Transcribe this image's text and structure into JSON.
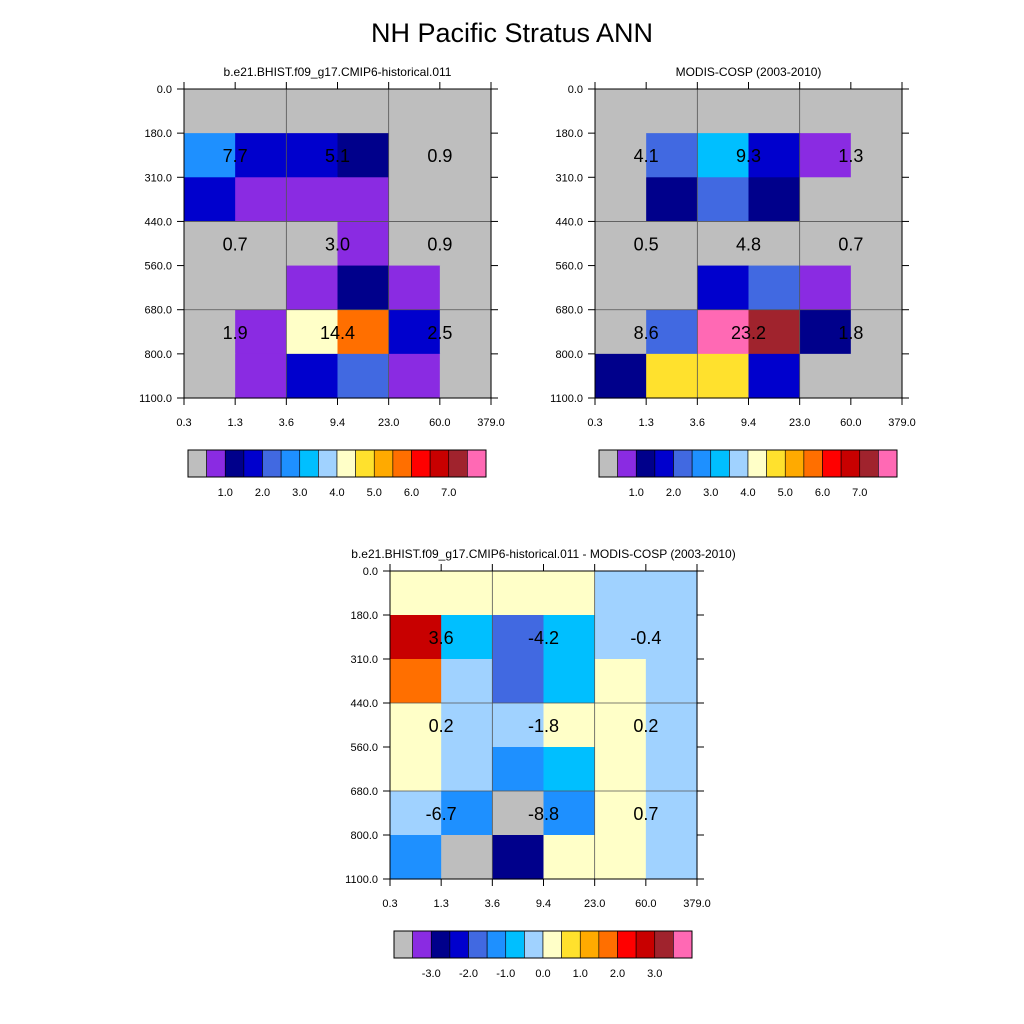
{
  "title": "NH Pacific Stratus ANN",
  "chart_data": [
    {
      "type": "heatmap",
      "title": "b.e21.BHIST.f09_g17.CMIP6-historical.011",
      "x_ticks": [
        "0.3",
        "1.3",
        "3.6",
        "9.4",
        "23.0",
        "60.0",
        "379.0"
      ],
      "y_ticks": [
        "0.0",
        "180.0",
        "310.0",
        "440.0",
        "560.0",
        "680.0",
        "800.0",
        "1100.0"
      ],
      "grid": true,
      "cell_colors": [
        [
          "#BEBEBE",
          "#BEBEBE",
          "#BEBEBE",
          "#BEBEBE",
          "#BEBEBE",
          "#BEBEBE"
        ],
        [
          "#1E90FF",
          "#0000CD",
          "#0000CD",
          "#00008B",
          "#BEBEBE",
          "#BEBEBE"
        ],
        [
          "#0000CD",
          "#8A2BE2",
          "#8A2BE2",
          "#8A2BE2",
          "#BEBEBE",
          "#BEBEBE"
        ],
        [
          "#BEBEBE",
          "#BEBEBE",
          "#BEBEBE",
          "#8A2BE2",
          "#BEBEBE",
          "#BEBEBE"
        ],
        [
          "#BEBEBE",
          "#BEBEBE",
          "#8A2BE2",
          "#00008B",
          "#8A2BE2",
          "#BEBEBE"
        ],
        [
          "#BEBEBE",
          "#8A2BE2",
          "#FFFFC8",
          "#FF6F00",
          "#0000CD",
          "#BEBEBE"
        ],
        [
          "#BEBEBE",
          "#8A2BE2",
          "#0000CD",
          "#4169E1",
          "#8A2BE2",
          "#BEBEBE"
        ]
      ],
      "block_labels": [
        [
          "7.7",
          "5.1",
          "0.9"
        ],
        [
          "0.7",
          "3.0",
          "0.9"
        ],
        [
          "1.9",
          "14.4",
          "2.5"
        ]
      ],
      "colorbar": {
        "colors": [
          "#BEBEBE",
          "#8A2BE2",
          "#00008B",
          "#0000CD",
          "#4169E1",
          "#1E90FF",
          "#00BFFF",
          "#A0D2FF",
          "#FFFFC8",
          "#FFE12D",
          "#FFAA00",
          "#FF6F00",
          "#FF0000",
          "#C80000",
          "#A0232D",
          "#FF69B4"
        ],
        "labels": [
          "1.0",
          "2.0",
          "3.0",
          "4.0",
          "5.0",
          "6.0",
          "7.0"
        ]
      }
    },
    {
      "type": "heatmap",
      "title": "MODIS-COSP (2003-2010)",
      "x_ticks": [
        "0.3",
        "1.3",
        "3.6",
        "9.4",
        "23.0",
        "60.0",
        "379.0"
      ],
      "y_ticks": [
        "0.0",
        "180.0",
        "310.0",
        "440.0",
        "560.0",
        "680.0",
        "800.0",
        "1100.0"
      ],
      "grid": true,
      "cell_colors": [
        [
          "#BEBEBE",
          "#BEBEBE",
          "#BEBEBE",
          "#BEBEBE",
          "#BEBEBE",
          "#BEBEBE"
        ],
        [
          "#BEBEBE",
          "#4169E1",
          "#00BFFF",
          "#0000CD",
          "#8A2BE2",
          "#BEBEBE"
        ],
        [
          "#BEBEBE",
          "#00008B",
          "#4169E1",
          "#00008B",
          "#BEBEBE",
          "#BEBEBE"
        ],
        [
          "#BEBEBE",
          "#BEBEBE",
          "#BEBEBE",
          "#BEBEBE",
          "#BEBEBE",
          "#BEBEBE"
        ],
        [
          "#BEBEBE",
          "#BEBEBE",
          "#0000CD",
          "#4169E1",
          "#8A2BE2",
          "#BEBEBE"
        ],
        [
          "#BEBEBE",
          "#4169E1",
          "#FF69B4",
          "#A0232D",
          "#00008B",
          "#BEBEBE"
        ],
        [
          "#00008B",
          "#FFE12D",
          "#FFE12D",
          "#0000CD",
          "#BEBEBE",
          "#BEBEBE"
        ]
      ],
      "block_labels": [
        [
          "4.1",
          "9.3",
          "1.3"
        ],
        [
          "0.5",
          "4.8",
          "0.7"
        ],
        [
          "8.6",
          "23.2",
          "1.8"
        ]
      ],
      "colorbar": {
        "colors": [
          "#BEBEBE",
          "#8A2BE2",
          "#00008B",
          "#0000CD",
          "#4169E1",
          "#1E90FF",
          "#00BFFF",
          "#A0D2FF",
          "#FFFFC8",
          "#FFE12D",
          "#FFAA00",
          "#FF6F00",
          "#FF0000",
          "#C80000",
          "#A0232D",
          "#FF69B4"
        ],
        "labels": [
          "1.0",
          "2.0",
          "3.0",
          "4.0",
          "5.0",
          "6.0",
          "7.0"
        ]
      }
    },
    {
      "type": "heatmap",
      "title": "b.e21.BHIST.f09_g17.CMIP6-historical.011 - MODIS-COSP (2003-2010)",
      "x_ticks": [
        "0.3",
        "1.3",
        "3.6",
        "9.4",
        "23.0",
        "60.0",
        "379.0"
      ],
      "y_ticks": [
        "0.0",
        "180.0",
        "310.0",
        "440.0",
        "560.0",
        "680.0",
        "800.0",
        "1100.0"
      ],
      "grid": true,
      "cell_colors": [
        [
          "#FFFFC8",
          "#FFFFC8",
          "#FFFFC8",
          "#FFFFC8",
          "#A0D2FF",
          "#A0D2FF"
        ],
        [
          "#C80000",
          "#00BFFF",
          "#4169E1",
          "#00BFFF",
          "#A0D2FF",
          "#A0D2FF"
        ],
        [
          "#FF6F00",
          "#A0D2FF",
          "#4169E1",
          "#00BFFF",
          "#FFFFC8",
          "#A0D2FF"
        ],
        [
          "#FFFFC8",
          "#A0D2FF",
          "#A0D2FF",
          "#FFFFC8",
          "#FFFFC8",
          "#A0D2FF"
        ],
        [
          "#FFFFC8",
          "#A0D2FF",
          "#1E90FF",
          "#00BFFF",
          "#FFFFC8",
          "#A0D2FF"
        ],
        [
          "#A0D2FF",
          "#1E90FF",
          "#BEBEBE",
          "#1E90FF",
          "#FFFFC8",
          "#A0D2FF"
        ],
        [
          "#1E90FF",
          "#BEBEBE",
          "#00008B",
          "#FFFFC8",
          "#FFFFC8",
          "#A0D2FF"
        ]
      ],
      "block_labels": [
        [
          "3.6",
          "-4.2",
          "-0.4"
        ],
        [
          "0.2",
          "-1.8",
          "0.2"
        ],
        [
          "-6.7",
          "-8.8",
          "0.7"
        ]
      ],
      "colorbar": {
        "colors": [
          "#BEBEBE",
          "#8A2BE2",
          "#00008B",
          "#0000CD",
          "#4169E1",
          "#1E90FF",
          "#00BFFF",
          "#A0D2FF",
          "#FFFFC8",
          "#FFE12D",
          "#FFAA00",
          "#FF6F00",
          "#FF0000",
          "#C80000",
          "#A0232D",
          "#FF69B4"
        ],
        "labels": [
          "-3.0",
          "-2.0",
          "-1.0",
          "0.0",
          "1.0",
          "2.0",
          "3.0"
        ]
      }
    }
  ]
}
